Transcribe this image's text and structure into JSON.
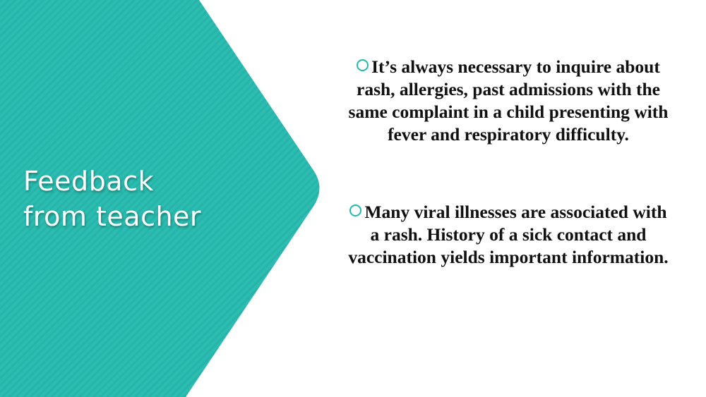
{
  "slide": {
    "title_lines": [
      "Feedback",
      "from teacher"
    ],
    "accent_color": "#2bbdb1",
    "bullets": [
      {
        "marker_icon": "circle-outline-icon",
        "text": "It’s always necessary to inquire about rash, allergies, past admissions with the same complaint in a child presenting with fever and respiratory difficulty."
      },
      {
        "marker_icon": "circle-outline-icon",
        "text": "Many viral illnesses are associated with a rash.  History of a sick contact and vaccination yields important information."
      }
    ]
  }
}
